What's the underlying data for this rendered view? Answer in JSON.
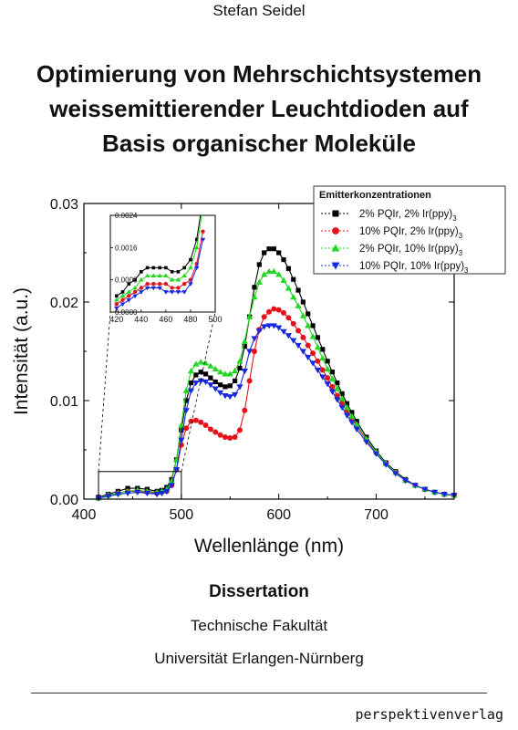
{
  "cover": {
    "author": "Stefan Seidel",
    "title_lines": [
      "Optimierung von Mehrschichtsystemen",
      "weissemittierender Leuchtdioden auf",
      "Basis organischer Moleküle"
    ],
    "dissertation": "Dissertation",
    "faculty": "Technische Fakultät",
    "university": "Universität Erlangen-Nürnberg",
    "publisher": "perspektivenverlag"
  },
  "chart_data": [
    {
      "type": "scatter",
      "xlabel": "Wellenlänge (nm)",
      "ylabel": "Intensität (a.u.)",
      "xlim": [
        400,
        780
      ],
      "ylim": [
        0,
        0.03
      ],
      "xticks": [
        "400",
        "500",
        "600",
        "700"
      ],
      "xtick_values": [
        400,
        500,
        600,
        700
      ],
      "yticks": [
        "0.00",
        "0.01",
        "0.02",
        "0.03"
      ],
      "ytick_values": [
        0,
        0.01,
        0.02,
        0.03
      ],
      "legend_title": "Emitterkonzentrationen",
      "legend_position": "top-right",
      "grid": false,
      "x": [
        415,
        425,
        435,
        445,
        455,
        465,
        475,
        480,
        485,
        490,
        495,
        500,
        505,
        510,
        515,
        520,
        525,
        530,
        535,
        540,
        545,
        550,
        555,
        560,
        565,
        570,
        575,
        580,
        585,
        590,
        595,
        600,
        605,
        610,
        615,
        620,
        625,
        630,
        635,
        640,
        645,
        650,
        655,
        660,
        665,
        670,
        675,
        680,
        690,
        700,
        710,
        720,
        730,
        740,
        750,
        760,
        770,
        780
      ],
      "series": [
        {
          "name": "2% PQIr, 2% Ir(ppy)",
          "subscript": "3",
          "color": "#000000",
          "marker": "square",
          "values": [
            0.0002,
            0.0005,
            0.0008,
            0.0011,
            0.0011,
            0.001,
            0.0008,
            0.0009,
            0.0012,
            0.002,
            0.004,
            0.007,
            0.01,
            0.0118,
            0.0126,
            0.0129,
            0.0127,
            0.0123,
            0.0119,
            0.0116,
            0.0114,
            0.0115,
            0.012,
            0.0133,
            0.0155,
            0.0185,
            0.0215,
            0.0238,
            0.025,
            0.0254,
            0.0254,
            0.025,
            0.0243,
            0.0234,
            0.0223,
            0.0212,
            0.02,
            0.0188,
            0.0176,
            0.0164,
            0.0152,
            0.014,
            0.0129,
            0.0118,
            0.0107,
            0.0097,
            0.0088,
            0.0079,
            0.0063,
            0.0049,
            0.0037,
            0.0028,
            0.002,
            0.0014,
            0.001,
            0.0007,
            0.0005,
            0.0004
          ]
        },
        {
          "name": "10% PQIr, 2% Ir(ppy)",
          "subscript": "3",
          "color": "#e4131b",
          "marker": "circle",
          "values": [
            0.0001,
            0.0004,
            0.0006,
            0.0008,
            0.0008,
            0.0007,
            0.0006,
            0.0007,
            0.0008,
            0.0014,
            0.003,
            0.0055,
            0.0072,
            0.0079,
            0.008,
            0.0078,
            0.0075,
            0.0071,
            0.0068,
            0.0065,
            0.0063,
            0.0062,
            0.0063,
            0.007,
            0.009,
            0.012,
            0.015,
            0.0172,
            0.0185,
            0.019,
            0.0193,
            0.0192,
            0.0189,
            0.0184,
            0.0178,
            0.0171,
            0.0164,
            0.0156,
            0.0148,
            0.014,
            0.0131,
            0.0123,
            0.0114,
            0.0105,
            0.0097,
            0.0089,
            0.0081,
            0.0074,
            0.006,
            0.0047,
            0.0036,
            0.0027,
            0.0019,
            0.0014,
            0.001,
            0.0007,
            0.0005,
            0.0004
          ]
        },
        {
          "name": "2% PQIr, 10% Ir(ppy)",
          "subscript": "3",
          "color": "#22d622",
          "marker": "triangle-up",
          "values": [
            0.0001,
            0.0004,
            0.0006,
            0.0008,
            0.0009,
            0.0008,
            0.0007,
            0.0008,
            0.001,
            0.0018,
            0.004,
            0.0075,
            0.011,
            0.013,
            0.0137,
            0.0139,
            0.0138,
            0.0135,
            0.0132,
            0.0129,
            0.0127,
            0.0127,
            0.013,
            0.014,
            0.016,
            0.0185,
            0.0205,
            0.022,
            0.0228,
            0.0231,
            0.0231,
            0.0228,
            0.0222,
            0.0214,
            0.0205,
            0.0196,
            0.0186,
            0.0176,
            0.0165,
            0.0154,
            0.0143,
            0.0132,
            0.0122,
            0.0112,
            0.0102,
            0.0093,
            0.0084,
            0.0076,
            0.0061,
            0.0048,
            0.0036,
            0.0027,
            0.0019,
            0.0014,
            0.001,
            0.0007,
            0.0005,
            0.0004
          ]
        },
        {
          "name": "10% PQIr, 10% Ir(ppy)",
          "subscript": "3",
          "color": "#1628e0",
          "marker": "triangle-down",
          "values": [
            0.0001,
            0.0003,
            0.0005,
            0.0006,
            0.0007,
            0.0006,
            0.0005,
            0.0006,
            0.0008,
            0.0014,
            0.003,
            0.006,
            0.009,
            0.011,
            0.0118,
            0.012,
            0.0119,
            0.0116,
            0.0112,
            0.0108,
            0.0105,
            0.0104,
            0.0106,
            0.0114,
            0.013,
            0.015,
            0.0163,
            0.0171,
            0.0175,
            0.0176,
            0.0176,
            0.0174,
            0.017,
            0.0166,
            0.0161,
            0.0156,
            0.015,
            0.0144,
            0.0138,
            0.0131,
            0.0124,
            0.0117,
            0.0109,
            0.0101,
            0.0093,
            0.0085,
            0.0078,
            0.0071,
            0.0058,
            0.0046,
            0.0035,
            0.0026,
            0.0019,
            0.0014,
            0.001,
            0.0007,
            0.0005,
            0.0004
          ]
        }
      ]
    },
    {
      "type": "scatter",
      "role": "inset",
      "xlim": [
        415,
        500
      ],
      "ylim": [
        0,
        0.0024
      ],
      "xticks": [
        "420",
        "440",
        "460",
        "480",
        "500"
      ],
      "xtick_values": [
        420,
        440,
        460,
        480,
        500
      ],
      "yticks": [
        "0.0000",
        "0.0008",
        "0.0016",
        "0.0024"
      ],
      "ytick_values": [
        0,
        0.0008,
        0.0016,
        0.0024
      ],
      "x": [
        420,
        425,
        430,
        435,
        440,
        445,
        450,
        455,
        460,
        465,
        470,
        475,
        480,
        485,
        490
      ],
      "series": [
        {
          "name": "2% PQIr, 2% Ir(ppy)",
          "color": "#000000",
          "marker": "square",
          "values": [
            0.0004,
            0.0005,
            0.0007,
            0.0008,
            0.001,
            0.0011,
            0.0011,
            0.0011,
            0.0011,
            0.001,
            0.001,
            0.0011,
            0.0013,
            0.0018,
            0.0028
          ]
        },
        {
          "name": "2% PQIr, 10% Ir(ppy)",
          "color": "#22d622",
          "marker": "triangle-up",
          "values": [
            0.0003,
            0.0004,
            0.0005,
            0.0006,
            0.0008,
            0.0009,
            0.0009,
            0.0009,
            0.0009,
            0.0008,
            0.0008,
            0.0009,
            0.0011,
            0.0016,
            0.0026
          ]
        },
        {
          "name": "10% PQIr, 2% Ir(ppy)",
          "color": "#e4131b",
          "marker": "circle",
          "values": [
            0.0002,
            0.0003,
            0.0004,
            0.0005,
            0.0006,
            0.0007,
            0.0007,
            0.0007,
            0.0007,
            0.0006,
            0.0006,
            0.0007,
            0.0008,
            0.0012,
            0.002
          ]
        },
        {
          "name": "10% PQIr, 10% Ir(ppy)",
          "color": "#1628e0",
          "marker": "triangle-down",
          "values": [
            0.0001,
            0.0002,
            0.0003,
            0.0004,
            0.0005,
            0.0006,
            0.0006,
            0.0006,
            0.0005,
            0.0005,
            0.0005,
            0.0005,
            0.0007,
            0.0011,
            0.0018
          ]
        }
      ]
    }
  ]
}
